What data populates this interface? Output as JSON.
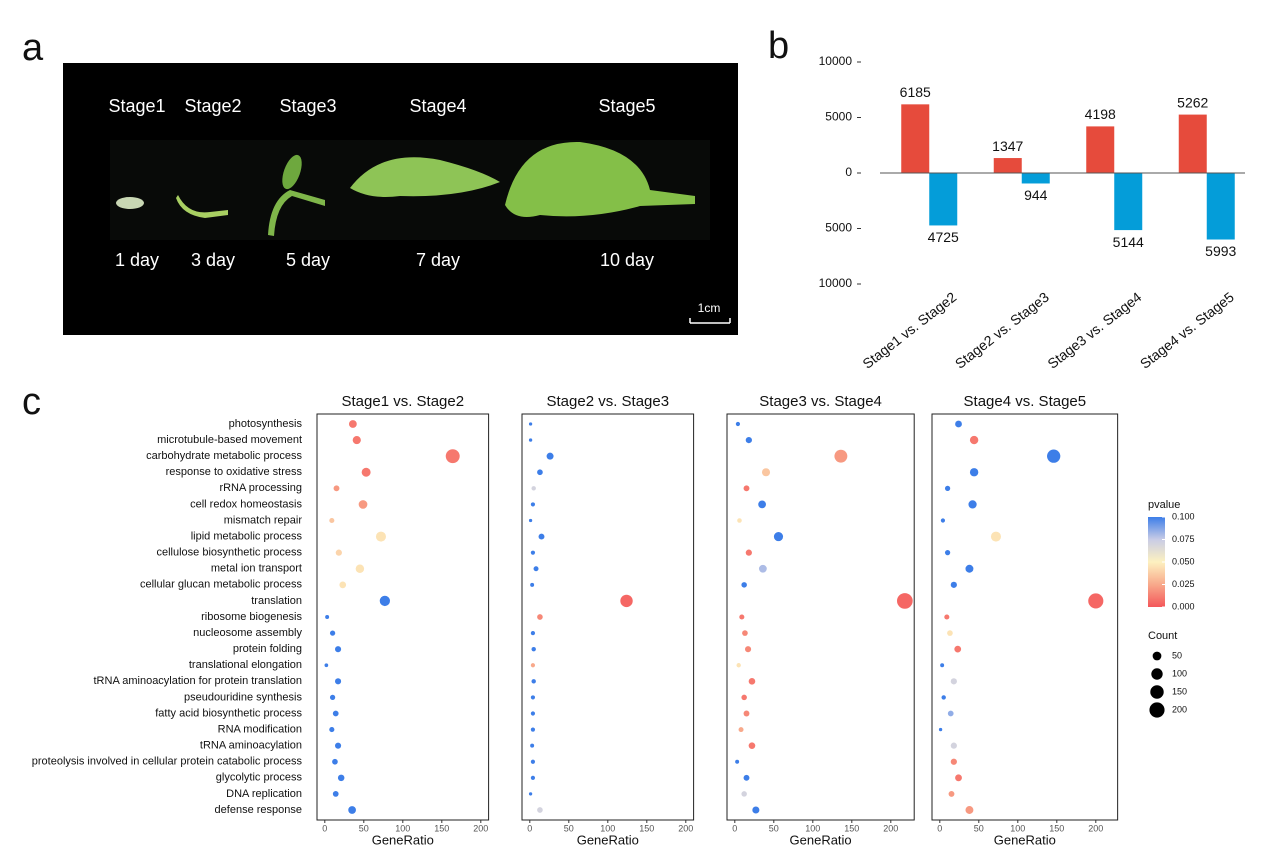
{
  "panel_labels": [
    "a",
    "b",
    "c"
  ],
  "photo": {
    "stages": [
      "Stage1",
      "Stage2",
      "Stage3",
      "Stage4",
      "Stage5"
    ],
    "days": [
      "1 day",
      "3 day",
      "5 day",
      "7 day",
      "10 day"
    ],
    "scale_bar": "1cm"
  },
  "chart_data": [
    {
      "type": "bar",
      "categories": [
        "Stage1 vs. Stage2",
        "Stage2 vs. Stage3",
        "Stage3 vs. Stage4",
        "Stage4 vs. Stage5"
      ],
      "series": [
        {
          "color": "#e64b3c",
          "values": [
            6185,
            1347,
            4198,
            5262
          ]
        },
        {
          "color": "#049dd9",
          "values": [
            -4725,
            -944,
            -5144,
            -5993
          ],
          "value_labels": [
            "4725",
            "944",
            "5144",
            "5993"
          ]
        }
      ],
      "ylim": [
        -10000,
        10000
      ],
      "yticks": [
        10000,
        5000,
        0,
        {
          "value": -5000,
          "label": "5000"
        },
        {
          "value": -10000,
          "label": "10000"
        }
      ]
    },
    {
      "type": "dot",
      "xlabel": "GeneRatio",
      "categories": [
        "photosynthesis",
        "microtubule-based movement",
        "carbohydrate metabolic process",
        "response to oxidative stress",
        "rRNA processing",
        "cell redox homeostasis",
        "mismatch repair",
        "lipid metabolic process",
        "cellulose biosynthetic process",
        "metal ion transport",
        "cellular glucan metabolic process",
        "translation",
        "ribosome biogenesis",
        "nucleosome assembly",
        "protein folding",
        "translational elongation",
        "tRNA aminoacylation for protein translation",
        "pseudouridine synthesis",
        "fatty acid biosynthetic process",
        "RNA modification",
        "tRNA aminoacylation",
        "proteolysis involved in cellular protein catabolic process",
        "glycolytic process",
        "DNA replication",
        "defense response"
      ],
      "xticks": [
        0,
        50,
        100,
        150,
        200
      ],
      "panels": [
        {
          "title": "Stage1 vs. Stage2",
          "xlim": [
            -10,
            210
          ],
          "gene_ratio": [
            36,
            41,
            164,
            53,
            15,
            49,
            9,
            72,
            18,
            45,
            23,
            77,
            3,
            10,
            17,
            2,
            17,
            10,
            14,
            9,
            17,
            13,
            21,
            14,
            35
          ],
          "count": [
            36,
            41,
            164,
            53,
            15,
            49,
            9,
            72,
            18,
            45,
            23,
            77,
            3,
            10,
            17,
            2,
            17,
            10,
            14,
            9,
            17,
            13,
            21,
            14,
            35
          ],
          "pvalue": [
            0.01,
            0.01,
            0.01,
            0.01,
            0.02,
            0.02,
            0.035,
            0.045,
            0.04,
            0.045,
            0.045,
            0.1,
            0.1,
            0.1,
            0.1,
            0.1,
            0.1,
            0.1,
            0.1,
            0.1,
            0.1,
            0.1,
            0.1,
            0.1,
            0.1
          ]
        },
        {
          "title": "Stage2 vs. Stage3",
          "xlim": [
            -10,
            210
          ],
          "gene_ratio": [
            1,
            1,
            26,
            13,
            5,
            4,
            1,
            15,
            4,
            8,
            3,
            124,
            13,
            4,
            5,
            4,
            5,
            4,
            4,
            4,
            3,
            4,
            4,
            1,
            13
          ],
          "count": [
            1,
            1,
            26,
            13,
            5,
            4,
            1,
            15,
            4,
            8,
            3,
            124,
            13,
            4,
            5,
            4,
            5,
            4,
            4,
            4,
            3,
            4,
            4,
            1,
            13
          ],
          "pvalue": [
            0.1,
            0.1,
            0.1,
            0.1,
            0.07,
            0.1,
            0.1,
            0.1,
            0.1,
            0.1,
            0.1,
            0.005,
            0.015,
            0.1,
            0.1,
            0.025,
            0.1,
            0.1,
            0.1,
            0.1,
            0.1,
            0.1,
            0.1,
            0.1,
            0.07
          ]
        },
        {
          "title": "Stage3 vs. Stage4",
          "xlim": [
            -10,
            230
          ],
          "gene_ratio": [
            4,
            18,
            136,
            40,
            15,
            35,
            6,
            56,
            18,
            36,
            12,
            218,
            9,
            13,
            17,
            5,
            22,
            12,
            15,
            8,
            22,
            3,
            15,
            12,
            27
          ],
          "count": [
            4,
            18,
            136,
            40,
            15,
            35,
            6,
            56,
            18,
            36,
            12,
            218,
            9,
            13,
            17,
            5,
            22,
            12,
            15,
            8,
            22,
            3,
            15,
            12,
            27
          ],
          "pvalue": [
            0.1,
            0.1,
            0.02,
            0.035,
            0.01,
            0.1,
            0.045,
            0.1,
            0.01,
            0.08,
            0.1,
            0.005,
            0.01,
            0.015,
            0.015,
            0.045,
            0.01,
            0.01,
            0.015,
            0.025,
            0.01,
            0.1,
            0.1,
            0.07,
            0.1
          ]
        },
        {
          "title": "Stage4 vs. Stage5",
          "xlim": [
            -10,
            228
          ],
          "gene_ratio": [
            24,
            44,
            146,
            44,
            10,
            42,
            4,
            72,
            10,
            38,
            18,
            200,
            9,
            13,
            23,
            3,
            18,
            5,
            14,
            1,
            18,
            18,
            24,
            15,
            38
          ],
          "count": [
            24,
            44,
            146,
            44,
            10,
            42,
            4,
            72,
            10,
            38,
            18,
            200,
            9,
            13,
            23,
            3,
            18,
            5,
            14,
            1,
            18,
            18,
            24,
            15,
            38
          ],
          "pvalue": [
            0.1,
            0.01,
            0.1,
            0.1,
            0.1,
            0.1,
            0.1,
            0.045,
            0.1,
            0.1,
            0.1,
            0.005,
            0.01,
            0.045,
            0.01,
            0.1,
            0.07,
            0.1,
            0.085,
            0.1,
            0.07,
            0.015,
            0.01,
            0.02,
            0.02
          ]
        }
      ],
      "color_legend": {
        "title": "pvalue",
        "ticks": [
          {
            "value": 0.1,
            "label": "0.100"
          },
          {
            "value": 0.075,
            "label": "0.075"
          },
          {
            "value": 0.05,
            "label": "0.050"
          },
          {
            "value": 0.025,
            "label": "0.025"
          },
          {
            "value": 0,
            "label": "0.000"
          }
        ],
        "colors": [
          "#f4575a",
          "#f8a98b",
          "#fdf1c0",
          "#c9cce6",
          "#3d7ee8"
        ]
      },
      "size_legend": {
        "title": "Count",
        "values": [
          50,
          100,
          150,
          200
        ]
      }
    }
  ]
}
